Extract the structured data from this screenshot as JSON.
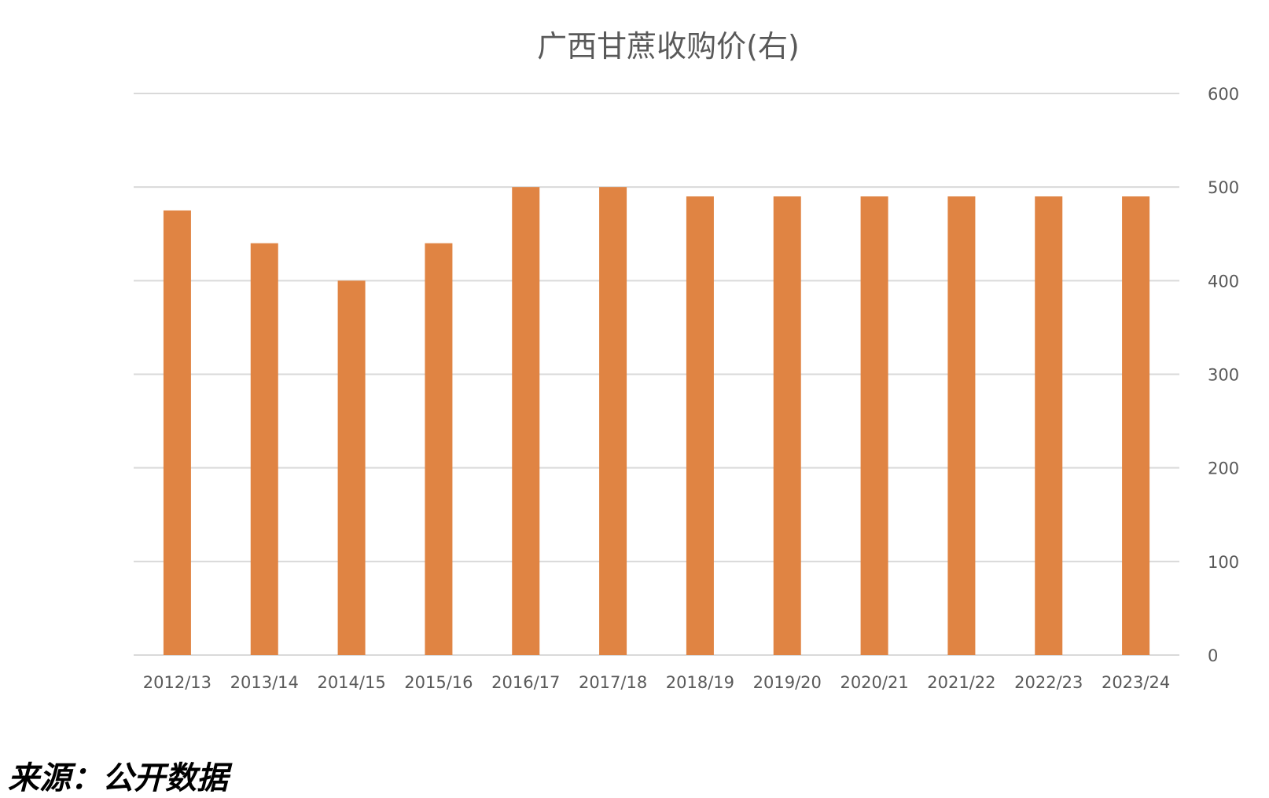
{
  "colors": {
    "bar": "#E08443",
    "grid": "#D9D9D9",
    "axis_text": "#595959"
  },
  "source_note": "来源：公开数据",
  "chart_data": {
    "type": "bar",
    "title": "广西甘蔗收购价(右)",
    "xlabel": "",
    "ylabel": "",
    "y_axis_side": "right",
    "ylim": [
      0,
      600
    ],
    "yticks": [
      0,
      100,
      200,
      300,
      400,
      500,
      600
    ],
    "grid": true,
    "legend": "none",
    "categories": [
      "2012/13",
      "2013/14",
      "2014/15",
      "2015/16",
      "2016/17",
      "2017/18",
      "2018/19",
      "2019/20",
      "2020/21",
      "2021/22",
      "2022/23",
      "2023/24"
    ],
    "values": [
      475,
      440,
      400,
      440,
      500,
      500,
      490,
      490,
      490,
      490,
      490,
      490
    ]
  }
}
